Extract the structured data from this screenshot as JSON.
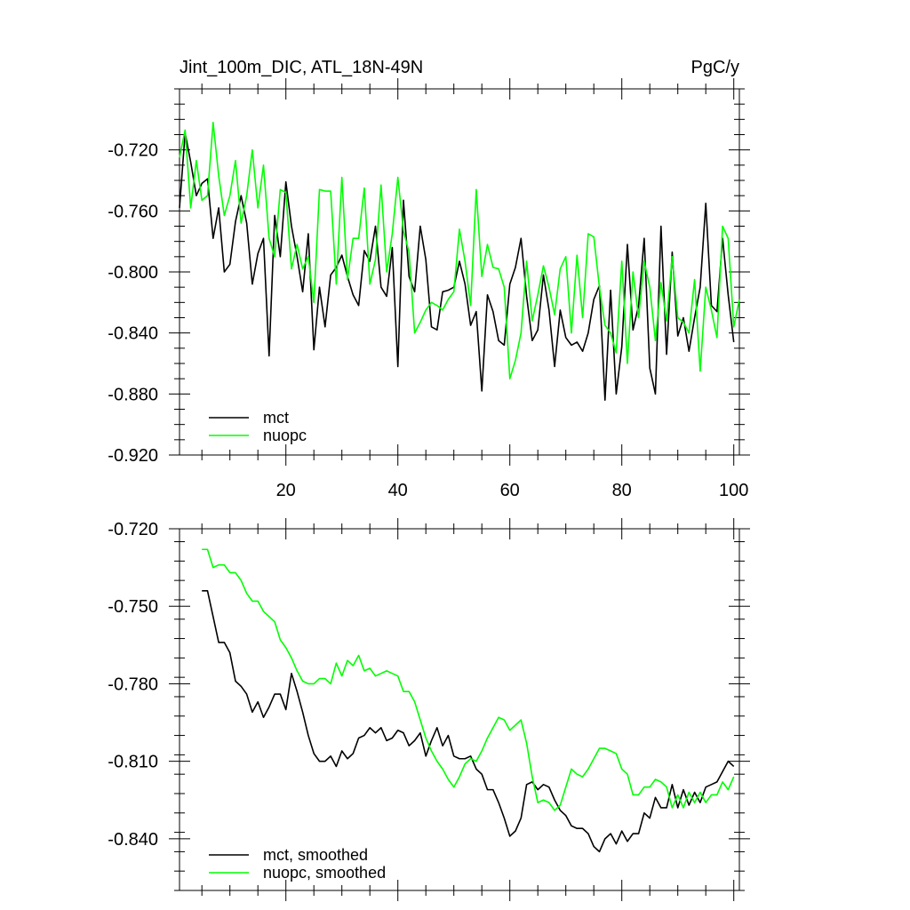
{
  "chart_data": [
    {
      "type": "line",
      "title_left": "Jint_100m_DIC, ATL_18N-49N",
      "title_right": "PgC/y",
      "xlabel": "",
      "ylabel": "",
      "xlim": [
        1,
        101
      ],
      "ylim": [
        -0.92,
        -0.68
      ],
      "xticks": [
        20,
        40,
        60,
        80,
        100
      ],
      "xtick_labels": [
        "20",
        "40",
        "60",
        "80",
        "100"
      ],
      "yticks": [
        -0.72,
        -0.76,
        -0.8,
        -0.84,
        -0.88,
        -0.92
      ],
      "ytick_labels": [
        "-0.720",
        "-0.760",
        "-0.800",
        "-0.840",
        "-0.880",
        "-0.920"
      ],
      "legend_position": "bottom-left",
      "series": [
        {
          "name": "mct",
          "color": "#000000",
          "x_start": 1,
          "values": [
            -0.758,
            -0.709,
            -0.728,
            -0.75,
            -0.742,
            -0.739,
            -0.778,
            -0.758,
            -0.8,
            -0.795,
            -0.767,
            -0.75,
            -0.768,
            -0.808,
            -0.788,
            -0.778,
            -0.855,
            -0.763,
            -0.79,
            -0.741,
            -0.77,
            -0.79,
            -0.813,
            -0.775,
            -0.851,
            -0.81,
            -0.836,
            -0.802,
            -0.797,
            -0.789,
            -0.803,
            -0.815,
            -0.822,
            -0.786,
            -0.793,
            -0.77,
            -0.81,
            -0.816,
            -0.784,
            -0.862,
            -0.753,
            -0.803,
            -0.813,
            -0.77,
            -0.792,
            -0.836,
            -0.838,
            -0.813,
            -0.812,
            -0.81,
            -0.793,
            -0.808,
            -0.835,
            -0.826,
            -0.878,
            -0.815,
            -0.826,
            -0.845,
            -0.848,
            -0.808,
            -0.797,
            -0.778,
            -0.816,
            -0.845,
            -0.838,
            -0.802,
            -0.825,
            -0.862,
            -0.825,
            -0.843,
            -0.848,
            -0.846,
            -0.852,
            -0.84,
            -0.818,
            -0.809,
            -0.884,
            -0.812,
            -0.88,
            -0.849,
            -0.782,
            -0.838,
            -0.822,
            -0.778,
            -0.863,
            -0.88,
            -0.77,
            -0.854,
            -0.787,
            -0.842,
            -0.83,
            -0.852,
            -0.83,
            -0.81,
            -0.755,
            -0.822,
            -0.826,
            -0.778,
            -0.815,
            -0.846
          ]
        },
        {
          "name": "nuopc",
          "color": "#00ff00",
          "x_start": 1,
          "values": [
            -0.725,
            -0.707,
            -0.758,
            -0.727,
            -0.753,
            -0.75,
            -0.702,
            -0.737,
            -0.763,
            -0.75,
            -0.727,
            -0.768,
            -0.75,
            -0.72,
            -0.758,
            -0.73,
            -0.778,
            -0.79,
            -0.746,
            -0.748,
            -0.798,
            -0.782,
            -0.798,
            -0.79,
            -0.82,
            -0.746,
            -0.747,
            -0.747,
            -0.808,
            -0.738,
            -0.805,
            -0.778,
            -0.778,
            -0.745,
            -0.808,
            -0.792,
            -0.743,
            -0.8,
            -0.775,
            -0.738,
            -0.773,
            -0.787,
            -0.84,
            -0.833,
            -0.825,
            -0.82,
            -0.822,
            -0.825,
            -0.818,
            -0.813,
            -0.772,
            -0.793,
            -0.822,
            -0.746,
            -0.803,
            -0.782,
            -0.797,
            -0.798,
            -0.81,
            -0.87,
            -0.858,
            -0.84,
            -0.793,
            -0.832,
            -0.815,
            -0.796,
            -0.81,
            -0.828,
            -0.798,
            -0.79,
            -0.84,
            -0.789,
            -0.83,
            -0.775,
            -0.777,
            -0.81,
            -0.835,
            -0.84,
            -0.853,
            -0.793,
            -0.86,
            -0.8,
            -0.83,
            -0.793,
            -0.81,
            -0.845,
            -0.807,
            -0.832,
            -0.79,
            -0.83,
            -0.833,
            -0.84,
            -0.805,
            -0.865,
            -0.81,
            -0.825,
            -0.843,
            -0.77,
            -0.778,
            -0.836,
            -0.818
          ]
        }
      ]
    },
    {
      "type": "line",
      "title_left": "",
      "title_right": "",
      "xlabel": "",
      "ylabel": "",
      "xlim": [
        1,
        101
      ],
      "ylim": [
        -0.86,
        -0.72
      ],
      "xticks": [
        20,
        40,
        60,
        80,
        100
      ],
      "xtick_labels": [],
      "yticks": [
        -0.72,
        -0.75,
        -0.78,
        -0.81,
        -0.84
      ],
      "ytick_labels": [
        "-0.720",
        "-0.750",
        "-0.780",
        "-0.810",
        "-0.840"
      ],
      "legend_position": "bottom-left",
      "series": [
        {
          "name": "mct, smoothed",
          "color": "#000000",
          "x_start": 5,
          "values": [
            -0.744,
            -0.744,
            -0.754,
            -0.764,
            -0.764,
            -0.768,
            -0.779,
            -0.781,
            -0.784,
            -0.791,
            -0.787,
            -0.793,
            -0.789,
            -0.784,
            -0.784,
            -0.79,
            -0.776,
            -0.783,
            -0.791,
            -0.8,
            -0.807,
            -0.81,
            -0.81,
            -0.808,
            -0.812,
            -0.806,
            -0.809,
            -0.807,
            -0.801,
            -0.8,
            -0.797,
            -0.799,
            -0.797,
            -0.802,
            -0.801,
            -0.798,
            -0.799,
            -0.804,
            -0.802,
            -0.799,
            -0.808,
            -0.802,
            -0.797,
            -0.804,
            -0.8,
            -0.808,
            -0.809,
            -0.809,
            -0.808,
            -0.813,
            -0.815,
            -0.821,
            -0.821,
            -0.826,
            -0.832,
            -0.839,
            -0.837,
            -0.832,
            -0.819,
            -0.818,
            -0.821,
            -0.819,
            -0.82,
            -0.825,
            -0.829,
            -0.831,
            -0.835,
            -0.836,
            -0.836,
            -0.838,
            -0.843,
            -0.845,
            -0.84,
            -0.838,
            -0.842,
            -0.837,
            -0.841,
            -0.838,
            -0.838,
            -0.83,
            -0.832,
            -0.824,
            -0.828,
            -0.828,
            -0.819,
            -0.828,
            -0.821,
            -0.827,
            -0.822,
            -0.826,
            -0.82,
            -0.819,
            -0.818,
            -0.814,
            -0.81,
            -0.812
          ]
        },
        {
          "name": "nuopc, smoothed",
          "color": "#00ff00",
          "x_start": 5,
          "values": [
            -0.728,
            -0.728,
            -0.735,
            -0.734,
            -0.734,
            -0.737,
            -0.737,
            -0.74,
            -0.745,
            -0.748,
            -0.748,
            -0.752,
            -0.754,
            -0.756,
            -0.763,
            -0.766,
            -0.77,
            -0.775,
            -0.779,
            -0.78,
            -0.78,
            -0.778,
            -0.778,
            -0.78,
            -0.772,
            -0.777,
            -0.771,
            -0.773,
            -0.769,
            -0.775,
            -0.774,
            -0.777,
            -0.776,
            -0.775,
            -0.776,
            -0.777,
            -0.783,
            -0.783,
            -0.787,
            -0.794,
            -0.801,
            -0.806,
            -0.81,
            -0.813,
            -0.817,
            -0.82,
            -0.816,
            -0.811,
            -0.809,
            -0.81,
            -0.806,
            -0.801,
            -0.797,
            -0.793,
            -0.794,
            -0.798,
            -0.796,
            -0.794,
            -0.803,
            -0.816,
            -0.826,
            -0.825,
            -0.826,
            -0.829,
            -0.827,
            -0.82,
            -0.813,
            -0.815,
            -0.816,
            -0.813,
            -0.809,
            -0.805,
            -0.805,
            -0.806,
            -0.807,
            -0.813,
            -0.815,
            -0.823,
            -0.823,
            -0.82,
            -0.82,
            -0.817,
            -0.818,
            -0.82,
            -0.828,
            -0.823,
            -0.828,
            -0.822,
            -0.826,
            -0.822,
            -0.826,
            -0.823,
            -0.823,
            -0.818,
            -0.821,
            -0.816
          ]
        }
      ]
    }
  ]
}
